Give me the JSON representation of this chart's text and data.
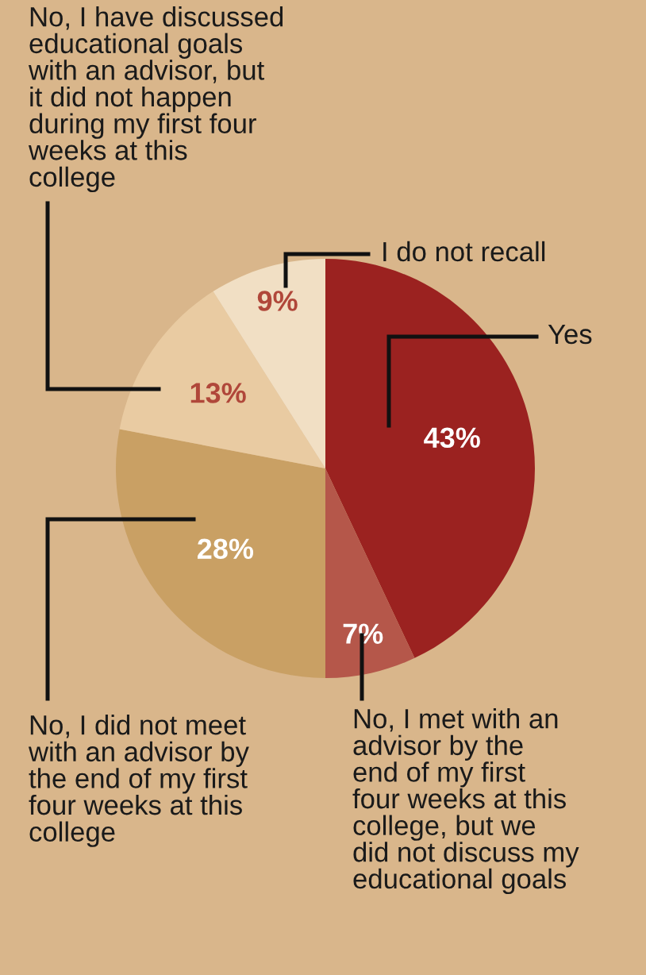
{
  "chart_data": {
    "type": "pie",
    "categories": [
      "Yes",
      "No, I met with an\nadvisor by the\nend of my first\nfour weeks at this\ncollege, but we\ndid not discuss my\neducational goals",
      "No, I did not meet\nwith an advisor by\nthe end of my first\nfour weeks at this\ncollege",
      "No, I have discussed\neducational goals\nwith an advisor, but\nit did not happen\nduring my first four\nweeks at this\ncollege",
      "I do not recall"
    ],
    "values": [
      43,
      7,
      28,
      13,
      9
    ],
    "colors": [
      "#9b2220",
      "#b5574a",
      "#c9a064",
      "#e9cba2",
      "#f1dfc4"
    ],
    "value_labels": [
      "43%",
      "7%",
      "28%",
      "13%",
      "9%"
    ]
  }
}
